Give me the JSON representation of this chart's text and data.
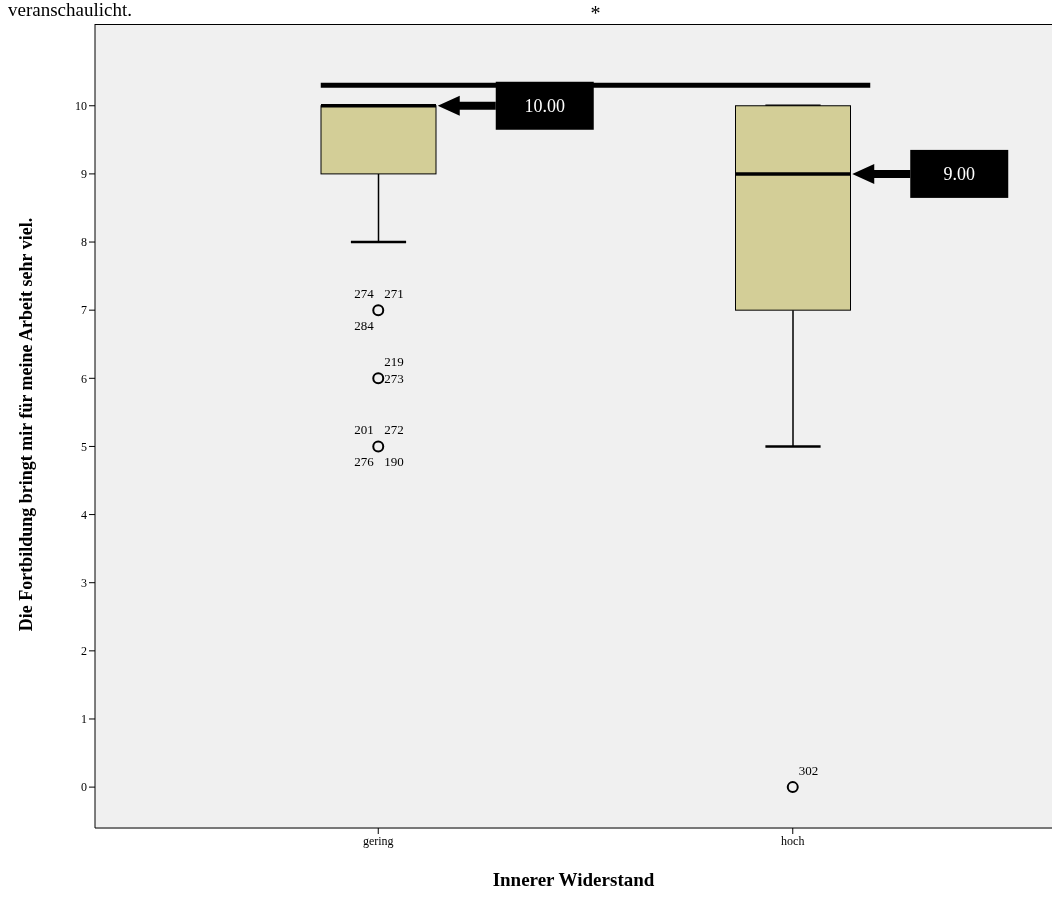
{
  "chart_data": {
    "type": "box",
    "xlabel": "Innerer Widerstand",
    "ylabel": "Die Fortbildung bringt mir für meine Arbeit sehr viel.",
    "categories": [
      "gering",
      "hoch"
    ],
    "boxes": [
      {
        "low": 8,
        "q1": 9,
        "median": 10,
        "q3": 10,
        "high": 10
      },
      {
        "low": 5,
        "q1": 7,
        "median": 9,
        "q3": 10,
        "high": 10
      }
    ],
    "series": [
      {
        "type": "scatter",
        "x": [
          "gering",
          "gering",
          "gering",
          "hoch"
        ],
        "values": [
          7,
          6,
          5,
          0
        ],
        "marker": "circle",
        "color": "#000000"
      }
    ],
    "ref_lines": [
      {
        "axis": "y",
        "value": 10.3,
        "label": "*",
        "color": "#000000"
      }
    ],
    "color": "#d3ce97",
    "ylim": [
      -0.6,
      11.2
    ],
    "yticks": [
      0,
      1,
      2,
      3,
      4,
      5,
      6,
      7,
      8,
      9,
      10
    ],
    "grid": false,
    "legend": false,
    "annotations": [
      "veranschaulicht.",
      "10.00",
      "9.00",
      {
        "text": "274",
        "x": "gering",
        "y": 7
      },
      {
        "text": "271",
        "x": "gering",
        "y": 7
      },
      {
        "text": "284",
        "x": "gering",
        "y": 7
      },
      {
        "text": "219",
        "x": "gering",
        "y": 6
      },
      {
        "text": "273",
        "x": "gering",
        "y": 6
      },
      {
        "text": "201",
        "x": "gering",
        "y": 5
      },
      {
        "text": "272",
        "x": "gering",
        "y": 5
      },
      {
        "text": "276",
        "x": "gering",
        "y": 5
      },
      {
        "text": "190",
        "x": "gering",
        "y": 5
      },
      {
        "text": "302",
        "x": "hoch",
        "y": 0
      }
    ]
  }
}
